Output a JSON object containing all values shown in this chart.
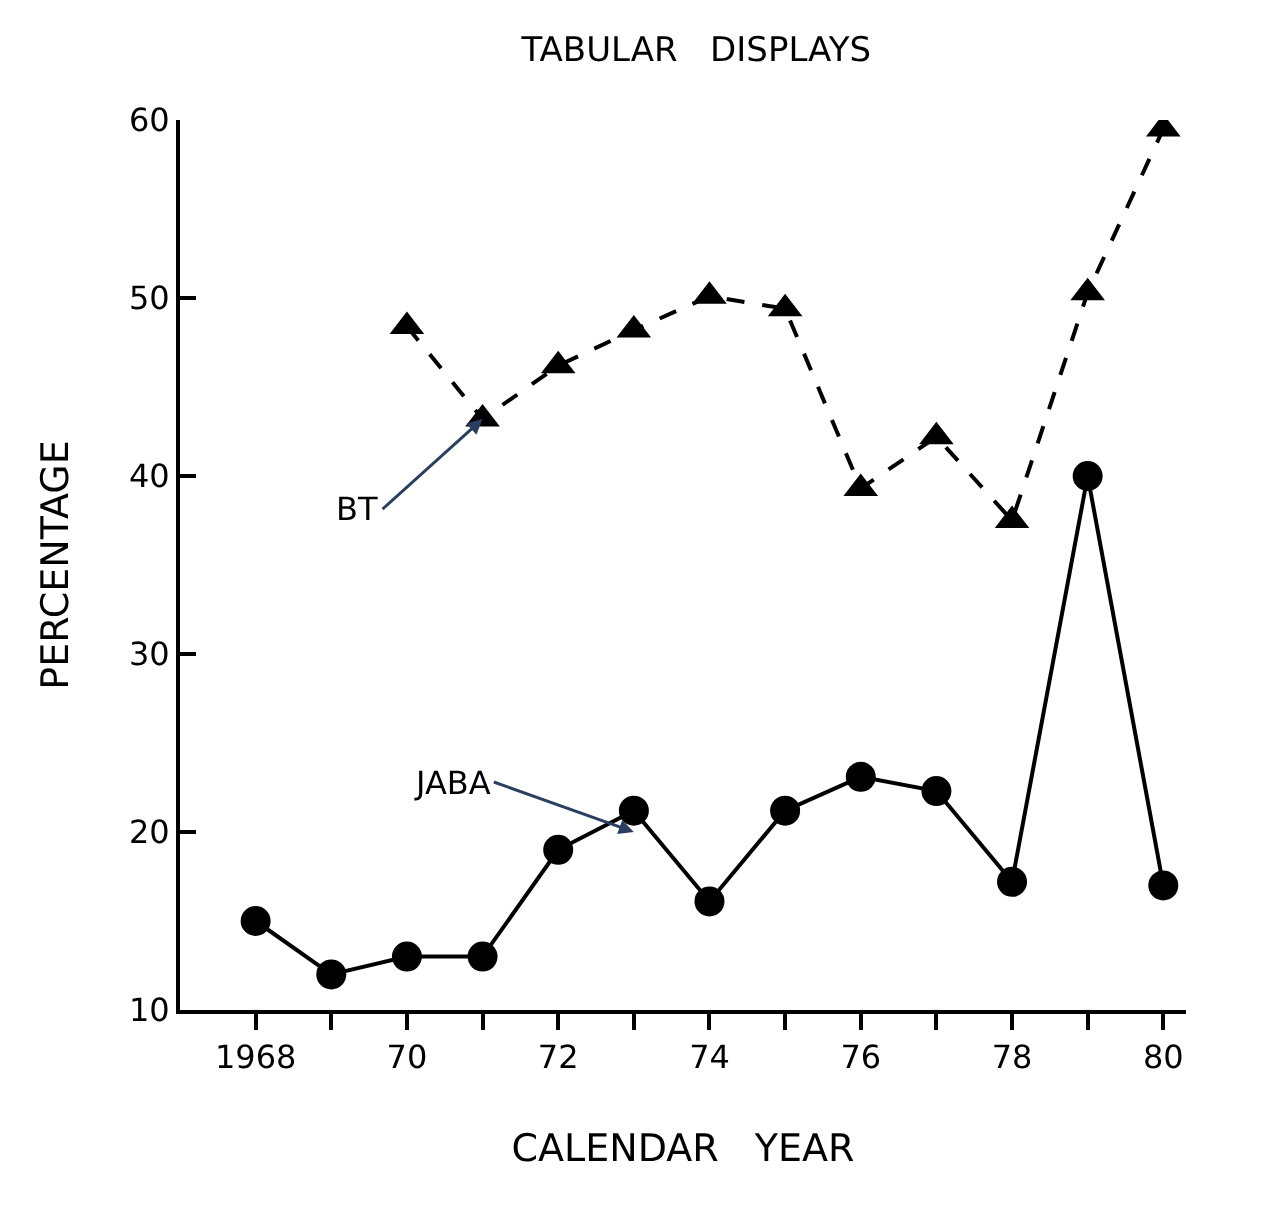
{
  "chart_data": {
    "type": "line",
    "title": "TABULAR   DISPLAYS",
    "xlabel": "CALENDAR   YEAR",
    "ylabel": "PERCENTAGE",
    "x": [
      1968,
      1969,
      1970,
      1971,
      1972,
      1973,
      1974,
      1975,
      1976,
      1977,
      1978,
      1979,
      1980
    ],
    "series": [
      {
        "color": "#000000",
        "marker": "triangle",
        "line_style": "dashed",
        "values": [
          null,
          null,
          48.4,
          43.2,
          46.2,
          48.2,
          50.1,
          49.4,
          39.3,
          42.2,
          37.5,
          50.3,
          59.5
        ]
      },
      {
        "color": "#000000",
        "marker": "circle",
        "line_style": "solid",
        "values": [
          15,
          12,
          13,
          13,
          19,
          21.2,
          16.1,
          21.2,
          23.1,
          22.3,
          17.2,
          40,
          17
        ]
      }
    ],
    "xlim": [
      1967,
      1980.3
    ],
    "ylim": [
      10,
      60
    ],
    "xticks": [
      1968,
      {
        "value": 1969,
        "label": null
      },
      {
        "value": 1970,
        "label": "70"
      },
      {
        "value": 1971,
        "label": null
      },
      {
        "value": 1972,
        "label": "72"
      },
      {
        "value": 1973,
        "label": null
      },
      {
        "value": 1974,
        "label": "74"
      },
      {
        "value": 1975,
        "label": null
      },
      {
        "value": 1976,
        "label": "76"
      },
      {
        "value": 1977,
        "label": null
      },
      {
        "value": 1978,
        "label": "78"
      },
      {
        "value": 1979,
        "label": null
      },
      {
        "value": 1980,
        "label": "80"
      }
    ],
    "yticks": [
      10,
      20,
      30,
      40,
      50,
      60
    ],
    "annotations": [
      {
        "text": "BT",
        "x": 1971,
        "y": 43.2
      },
      {
        "text": "JABA",
        "x": 1973,
        "y": 20
      }
    ],
    "legend": false
  }
}
